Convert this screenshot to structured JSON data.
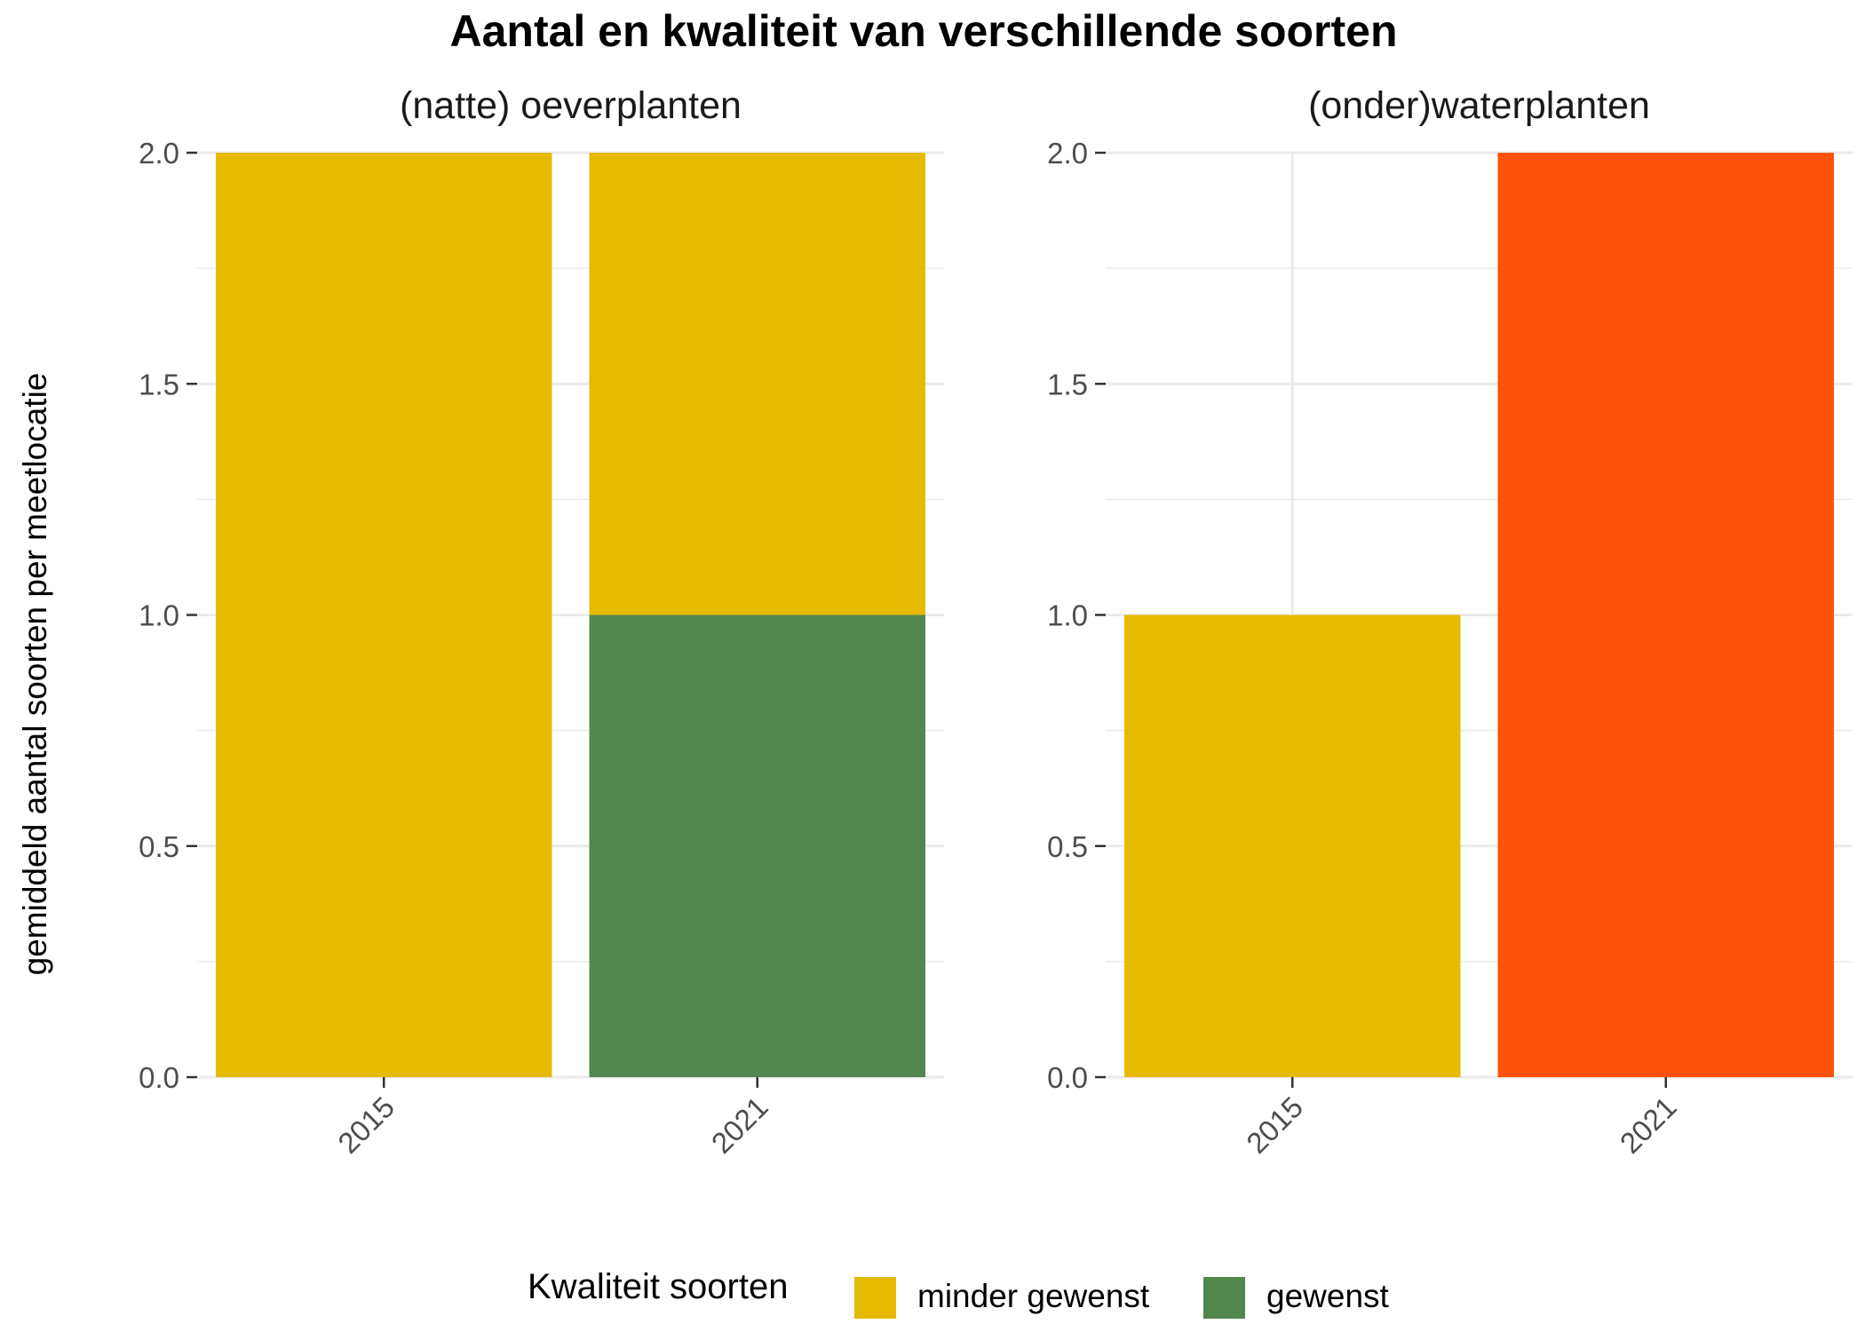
{
  "chart_data": {
    "type": "bar",
    "stacked": true,
    "title": "Aantal en kwaliteit van verschillende soorten",
    "ylabel": "gemiddeld aantal soorten per meetlocatie",
    "ylim": [
      0,
      2
    ],
    "yticks": [
      "0.0",
      "0.5",
      "1.0",
      "1.5",
      "2.0"
    ],
    "grid": true,
    "legend": {
      "title": "Kwaliteit soorten",
      "position": "bottom",
      "items": [
        {
          "name": "minder gewenst",
          "color": "#E6BA00"
        },
        {
          "name": "gewenst",
          "color": "#52874E"
        }
      ]
    },
    "facets": [
      {
        "title": "(natte) oeverplanten",
        "categories": [
          "2015",
          "2021"
        ],
        "segments": [
          {
            "category": "2015",
            "series": "minder gewenst",
            "from": 0,
            "to": 2,
            "color": "#E6BA00"
          },
          {
            "category": "2021",
            "series": "gewenst",
            "from": 0,
            "to": 1,
            "color": "#52874E"
          },
          {
            "category": "2021",
            "series": "minder gewenst",
            "from": 1,
            "to": 2,
            "color": "#E6BA00"
          }
        ]
      },
      {
        "title": "(onder)waterplanten",
        "categories": [
          "2015",
          "2021"
        ],
        "segments": [
          {
            "category": "2015",
            "series": "minder gewenst",
            "from": 0,
            "to": 1,
            "color": "#E6BA00"
          },
          {
            "category": "2021",
            "series": "",
            "from": 0,
            "to": 2,
            "color": "#FF510A"
          }
        ]
      }
    ]
  }
}
